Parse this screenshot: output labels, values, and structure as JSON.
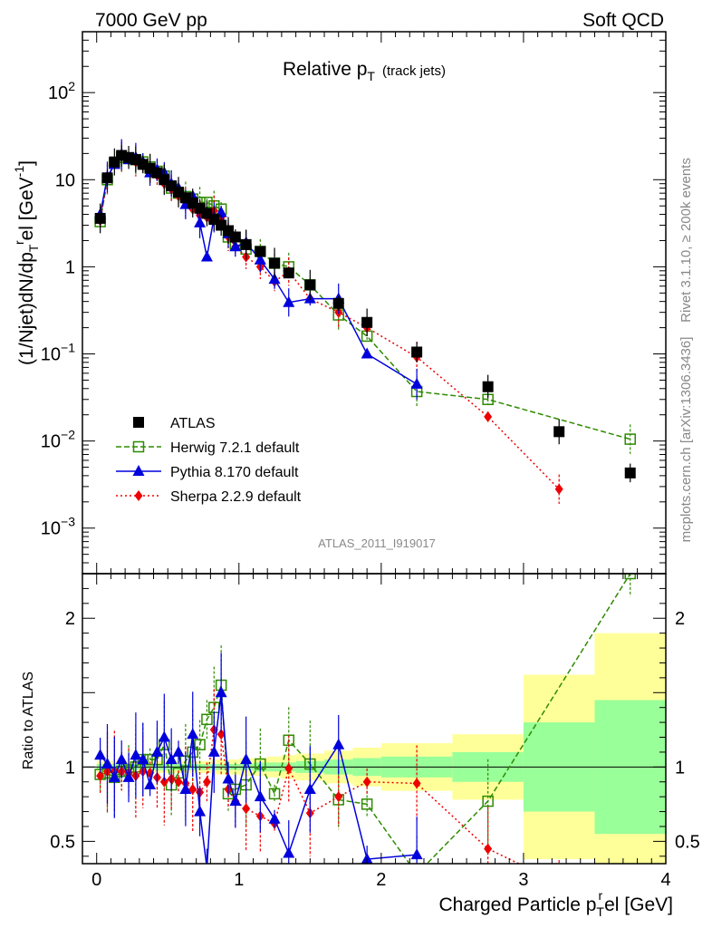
{
  "header": {
    "left": "7000 GeV pp",
    "right": "Soft QCD"
  },
  "side": {
    "rivet": "Rivet 3.1.10, ≥ 200k events",
    "mcplots": "mcplots.cern.ch [arXiv:1306.3436]"
  },
  "chart_data": {
    "type": "scatter",
    "title_main": "Relative p",
    "title_sub": "T",
    "title_extra": "(track jets)",
    "watermark": "ATLAS_2011_I919017",
    "ylabel": "(1/Njet)dN/dp",
    "ylabel_sub": "T",
    "ylabel_sup": "r",
    "ylabel_tail": "el [GeV",
    "ylabel_unit_sup": "-1",
    "ylabel_close": "]",
    "ratio_ylabel": "Ratio to ATLAS",
    "xlabel_a": "Charged Particle p",
    "xlabel_sub": "T",
    "xlabel_sup": "r",
    "xlabel_b": "el [GeV]",
    "xlim": [
      -0.1,
      4.0
    ],
    "ylim_log": [
      0.0003,
      500
    ],
    "ratio_ylim": [
      0.35,
      2.3
    ],
    "x_ticks": [
      "0",
      "1",
      "2",
      "3",
      "4"
    ],
    "y_ticks": [
      {
        "label": "10",
        "sup": "2",
        "value": 100
      },
      {
        "label": "10",
        "sup": "",
        "value": 10
      },
      {
        "label": "1",
        "sup": "",
        "value": 1
      },
      {
        "label": "10",
        "sup": "−1",
        "value": 0.1
      },
      {
        "label": "10",
        "sup": "−2",
        "value": 0.01
      },
      {
        "label": "10",
        "sup": "−3",
        "value": 0.001
      }
    ],
    "ratio_ticks": [
      "0.5",
      "1",
      "2"
    ],
    "legend": [
      "ATLAS",
      "Herwig 7.2.1 default",
      "Pythia 8.170 default",
      "Sherpa 2.2.9 default"
    ],
    "colors": {
      "atlas": "#000000",
      "herwig": "#2e8b00",
      "pythia": "#0000dd",
      "sherpa": "#ee0000",
      "band_yellow": "#ffff99",
      "band_green": "#99ff99"
    },
    "atlas": {
      "x": [
        0.025,
        0.075,
        0.125,
        0.175,
        0.225,
        0.275,
        0.325,
        0.375,
        0.425,
        0.475,
        0.525,
        0.575,
        0.625,
        0.675,
        0.725,
        0.775,
        0.825,
        0.875,
        0.925,
        0.975,
        1.05,
        1.15,
        1.25,
        1.35,
        1.5,
        1.7,
        1.9,
        2.25,
        2.75,
        3.25,
        3.75
      ],
      "y": [
        3.6,
        10.5,
        16,
        19,
        18,
        17,
        15,
        13.5,
        12,
        10,
        8.5,
        7.2,
        6.2,
        5.4,
        4.7,
        4.1,
        3.5,
        3.0,
        2.6,
        2.2,
        1.8,
        1.5,
        1.1,
        0.85,
        0.62,
        0.38,
        0.23,
        0.105,
        0.042,
        0.0128,
        0.0043
      ]
    },
    "herwig": {
      "x": [
        0.025,
        0.075,
        0.125,
        0.175,
        0.225,
        0.275,
        0.325,
        0.375,
        0.425,
        0.475,
        0.525,
        0.575,
        0.625,
        0.675,
        0.725,
        0.775,
        0.825,
        0.875,
        0.925,
        0.975,
        1.05,
        1.15,
        1.25,
        1.35,
        1.5,
        1.7,
        1.9,
        2.25,
        2.75,
        3.75
      ],
      "y": [
        3.3,
        10,
        15.5,
        18,
        17.5,
        17,
        16,
        14,
        12.5,
        11,
        8,
        7,
        6.4,
        6,
        5.5,
        5.5,
        5.0,
        4.6,
        2.2,
        1.8,
        1.6,
        1.5,
        1.1,
        1.0,
        0.62,
        0.28,
        0.16,
        0.037,
        0.03,
        0.0105
      ],
      "ratio": [
        0.95,
        0.96,
        0.93,
        0.97,
        0.98,
        1.0,
        1.05,
        1.05,
        1.05,
        1.15,
        0.88,
        0.96,
        1.04,
        1.1,
        1.15,
        1.32,
        1.4,
        1.55,
        0.82,
        0.85,
        0.88,
        1.02,
        0.82,
        1.18,
        1.02,
        0.78,
        0.75,
        0.28,
        0.77,
        2.3
      ]
    },
    "pythia": {
      "x": [
        0.025,
        0.075,
        0.125,
        0.175,
        0.225,
        0.275,
        0.325,
        0.375,
        0.425,
        0.475,
        0.525,
        0.575,
        0.625,
        0.675,
        0.725,
        0.775,
        0.825,
        0.875,
        0.925,
        0.975,
        1.05,
        1.15,
        1.25,
        1.35,
        1.5,
        1.7,
        1.9,
        2.25
      ],
      "y": [
        4.0,
        10.8,
        15,
        19.5,
        17,
        18,
        16,
        12,
        13,
        12,
        9,
        8,
        5.2,
        6.5,
        3.2,
        1.3,
        3.7,
        4.2,
        2.4,
        1.7,
        1.9,
        1.2,
        0.72,
        0.39,
        0.43,
        0.43,
        0.1,
        0.045
      ],
      "ratio": [
        1.08,
        1.02,
        0.93,
        1.05,
        0.93,
        1.08,
        1.05,
        0.88,
        1.1,
        1.2,
        1.05,
        1.1,
        0.85,
        1.22,
        0.7,
        0.32,
        1.1,
        1.5,
        0.92,
        0.77,
        1.05,
        0.8,
        0.65,
        0.42,
        0.85,
        1.15,
        0.38,
        0.41
      ]
    },
    "sherpa": {
      "x": [
        0.025,
        0.075,
        0.125,
        0.175,
        0.225,
        0.275,
        0.325,
        0.375,
        0.425,
        0.475,
        0.525,
        0.575,
        0.625,
        0.675,
        0.725,
        0.775,
        0.825,
        0.875,
        0.925,
        0.975,
        1.05,
        1.15,
        1.25,
        1.35,
        1.5,
        1.7,
        1.9,
        2.25,
        2.75,
        3.25
      ],
      "y": [
        3.4,
        10.2,
        15.5,
        18.5,
        17.2,
        16,
        14.5,
        13,
        11.2,
        9,
        7.8,
        6.5,
        5.5,
        4.6,
        3.9,
        3.7,
        4.4,
        3.7,
        2.2,
        1.7,
        1.3,
        1.0,
        0.68,
        0.88,
        0.43,
        0.3,
        0.2,
        0.092,
        0.019,
        0.0028
      ],
      "ratio": [
        0.94,
        0.97,
        0.97,
        0.97,
        0.96,
        0.94,
        0.97,
        0.96,
        0.93,
        0.9,
        0.92,
        0.9,
        0.89,
        0.85,
        0.83,
        0.9,
        1.25,
        1.22,
        0.85,
        0.77,
        0.72,
        0.67,
        0.62,
        0.99,
        0.69,
        0.8,
        0.9,
        0.89,
        0.45,
        0.22
      ]
    },
    "band_edges": [
      0.0,
      0.1,
      0.2,
      0.3,
      0.4,
      0.5,
      0.6,
      0.7,
      0.8,
      0.9,
      1.0,
      1.1,
      1.2,
      1.3,
      1.4,
      1.6,
      1.8,
      2.0,
      2.5,
      3.0,
      3.5,
      4.0
    ],
    "band_green": [
      0.02,
      0.02,
      0.02,
      0.02,
      0.02,
      0.02,
      0.02,
      0.02,
      0.02,
      0.02,
      0.02,
      0.03,
      0.03,
      0.03,
      0.04,
      0.05,
      0.06,
      0.07,
      0.1,
      0.3,
      0.45
    ],
    "band_yellow": [
      0.04,
      0.04,
      0.04,
      0.04,
      0.04,
      0.04,
      0.04,
      0.04,
      0.05,
      0.05,
      0.06,
      0.06,
      0.07,
      0.08,
      0.09,
      0.11,
      0.13,
      0.16,
      0.22,
      0.62,
      0.9
    ]
  }
}
